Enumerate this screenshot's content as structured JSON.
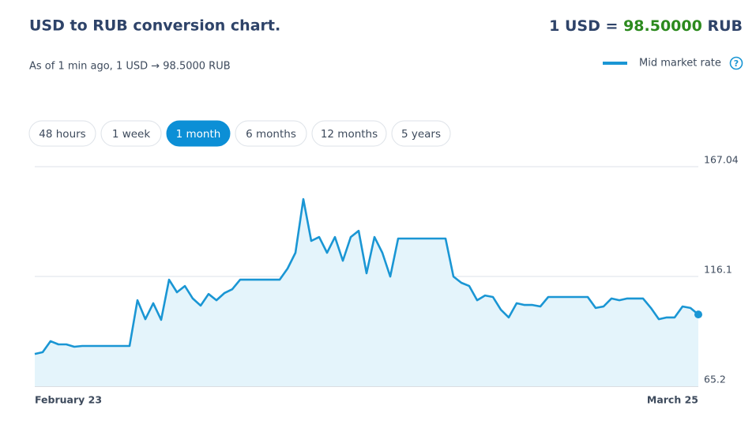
{
  "header": {
    "title": "USD to RUB conversion chart.",
    "rate_prefix": "1 USD =",
    "rate_value": "98.50000",
    "rate_suffix": "RUB",
    "subtitle": "As of 1 min ago, 1 USD → 98.5000 RUB",
    "help": "?"
  },
  "range_buttons": {
    "items": [
      "48 hours",
      "1 week",
      "1 month",
      "6 months",
      "12 months",
      "5 years"
    ],
    "active": "1 month"
  },
  "chart_data": {
    "type": "line",
    "categories": [
      "February 23",
      null,
      null,
      null,
      null,
      null,
      null,
      null,
      null,
      null,
      null,
      null,
      null,
      null,
      null,
      null,
      null,
      null,
      null,
      null,
      null,
      null,
      null,
      null,
      null,
      null,
      null,
      null,
      null,
      null,
      null,
      null,
      null,
      null,
      null,
      null,
      null,
      null,
      null,
      null,
      null,
      null,
      null,
      null,
      null,
      null,
      null,
      null,
      null,
      null,
      null,
      null,
      null,
      null,
      null,
      null,
      null,
      null,
      null,
      null,
      null,
      null,
      null,
      null,
      null,
      null,
      null,
      null,
      null,
      null,
      null,
      null,
      null,
      null,
      null,
      null,
      null,
      null,
      null,
      null,
      null,
      null,
      null,
      null,
      "March 25"
    ],
    "series": [
      {
        "name": "Mid market rate",
        "color": "#1a96d4",
        "values": [
          80.2,
          81.0,
          86.1,
          84.6,
          84.6,
          83.5,
          83.9,
          83.9,
          83.9,
          83.9,
          83.9,
          83.9,
          83.9,
          105.1,
          96.3,
          103.7,
          96.0,
          114.6,
          108.8,
          111.7,
          105.9,
          102.6,
          108.0,
          105.1,
          108.4,
          110.2,
          114.6,
          114.6,
          114.6,
          114.6,
          114.6,
          114.6,
          119.8,
          127.1,
          152.0,
          132.6,
          134.4,
          127.1,
          134.4,
          123.4,
          134.4,
          137.3,
          117.6,
          134.4,
          127.1,
          116.1,
          133.7,
          133.7,
          133.7,
          133.7,
          133.7,
          133.7,
          133.7,
          116.1,
          113.2,
          111.7,
          105.1,
          107.3,
          106.6,
          100.7,
          97.1,
          103.7,
          102.9,
          102.9,
          102.2,
          106.6,
          106.6,
          106.6,
          106.6,
          106.6,
          106.6,
          101.5,
          102.2,
          105.9,
          105.1,
          105.9,
          105.9,
          105.9,
          101.5,
          96.3,
          97.1,
          97.1,
          102.2,
          101.5,
          98.5
        ]
      }
    ],
    "ylim": [
      65.2,
      167.04
    ],
    "yticks": [
      65.2,
      116.1,
      167.04
    ],
    "grid": true,
    "area_fill": "#e4f4fb"
  }
}
